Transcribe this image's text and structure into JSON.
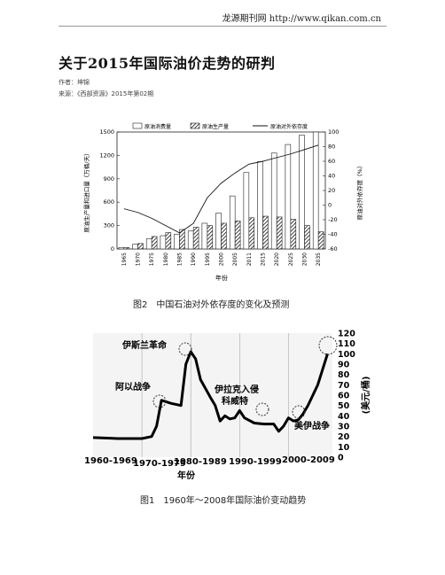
{
  "header": {
    "site": "龙源期刊网 http://www.qikan.com.cn"
  },
  "article": {
    "title": "关于2015年国际油价走势的研判",
    "author": "作者：坤锦",
    "source": "来源：《西部资源》2015年第02期"
  },
  "figure2": {
    "caption": "图2　中国石油对外依存度的变化及预测",
    "chart_data": {
      "type": "bar",
      "legend_position": "top",
      "xlabel": "年份",
      "ylabel": "原油生产量和进口量（万桶/天）",
      "y2label": "原油对外依存度（%）",
      "categories": [
        "1965",
        "1970",
        "1975",
        "1980",
        "1985",
        "1990",
        "1995",
        "2000",
        "2005",
        "2011",
        "2015",
        "2020",
        "2025",
        "2030",
        "2035"
      ],
      "ylim": [
        0,
        1500
      ],
      "yticks": [
        "1500",
        "1200",
        "900",
        "600",
        "300",
        "0"
      ],
      "y2lim": [
        -60,
        100
      ],
      "y2ticks": [
        "100",
        "80",
        "60",
        "40",
        "20",
        "0",
        "-20",
        "-40",
        "-60"
      ],
      "series": [
        {
          "name": "原油消费量",
          "values": [
            20,
            60,
            130,
            170,
            190,
            230,
            330,
            460,
            680,
            980,
            1120,
            1230,
            1340,
            1460,
            1500
          ]
        },
        {
          "name": "原油生产量",
          "values": [
            18,
            70,
            160,
            210,
            250,
            280,
            300,
            330,
            360,
            400,
            420,
            410,
            380,
            300,
            220
          ]
        },
        {
          "name": "原油对外依存度",
          "values": [
            -5,
            -10,
            -18,
            -28,
            -38,
            -25,
            10,
            30,
            44,
            56,
            60,
            65,
            70,
            76,
            82
          ]
        }
      ]
    }
  },
  "figure1": {
    "caption": "图1　1960年～2008年国际油价变动趋势",
    "chart_data": {
      "type": "line",
      "xlabel": "年份",
      "ylabel": "(美元/桶)",
      "xlim": [
        1960,
        2009
      ],
      "ylim": [
        0,
        120
      ],
      "yticks": [
        "120",
        "110",
        "100",
        "90",
        "80",
        "70",
        "60",
        "50",
        "40",
        "30",
        "20",
        "10",
        "0"
      ],
      "x_labels": [
        "1960-1969",
        "1970-1979",
        "1980-1989",
        "1990-1999",
        "2000-2009"
      ],
      "x": [
        1960,
        1965,
        1970,
        1972,
        1973,
        1974,
        1976,
        1978,
        1979,
        1980,
        1981,
        1982,
        1984,
        1985,
        1986,
        1987,
        1988,
        1989,
        1990,
        1991,
        1993,
        1995,
        1997,
        1998,
        1999,
        2000,
        2001,
        2002,
        2003,
        2004,
        2005,
        2006,
        2007,
        2008
      ],
      "values": [
        19,
        18,
        18,
        20,
        30,
        55,
        52,
        50,
        90,
        102,
        95,
        75,
        58,
        50,
        35,
        40,
        37,
        38,
        45,
        38,
        33,
        32,
        32,
        25,
        30,
        38,
        35,
        36,
        42,
        50,
        60,
        70,
        85,
        100
      ],
      "annotations": [
        "伊斯兰革命",
        "阿以战争",
        "伊拉克入侵科威特",
        "美伊战争"
      ]
    }
  }
}
